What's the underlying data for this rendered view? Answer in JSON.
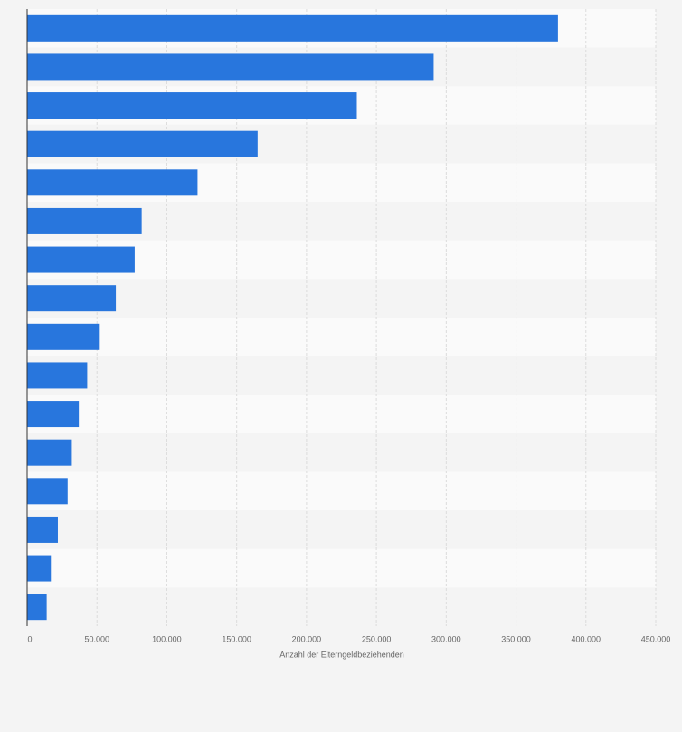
{
  "chart_data": {
    "type": "bar",
    "orientation": "horizontal",
    "x_label": "Anzahl der Elterngeldbeziehenden",
    "categories": [
      null,
      null,
      null,
      null,
      null,
      null,
      null,
      null,
      null,
      null,
      null,
      null,
      null,
      null,
      null,
      null
    ],
    "values": [
      380000,
      291000,
      236000,
      165000,
      122000,
      82000,
      77000,
      63500,
      52000,
      43000,
      37000,
      32000,
      29000,
      22000,
      17000,
      14000
    ],
    "color": "#2876dd",
    "xlim": [
      0,
      450000
    ],
    "xticks": [
      0,
      {
        "value": 50000,
        "label": "50.000"
      },
      {
        "value": 100000,
        "label": "100.000"
      },
      {
        "value": 150000,
        "label": "150.000"
      },
      {
        "value": 200000,
        "label": "200.000"
      },
      {
        "value": 250000,
        "label": "250.000"
      },
      {
        "value": 300000,
        "label": "300.000"
      },
      {
        "value": 350000,
        "label": "350.000"
      },
      {
        "value": 400000,
        "label": "400.000"
      },
      {
        "value": 450000,
        "label": "450.000"
      }
    ],
    "grid": true
  }
}
